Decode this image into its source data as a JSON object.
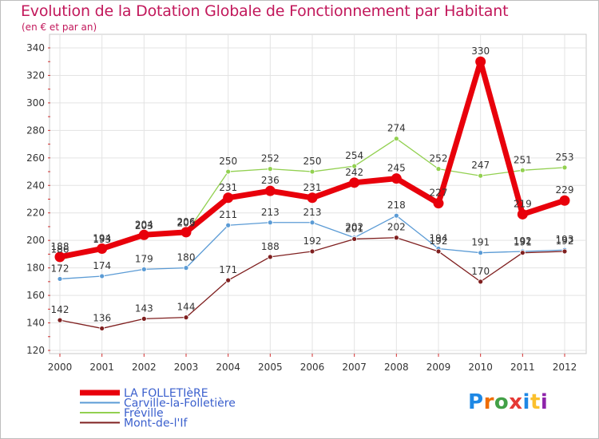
{
  "chart_data": {
    "type": "line",
    "title": "Evolution de la Dotation Globale de Fonctionnement par Habitant",
    "subtitle": "(en € et par an)",
    "xlabel": "",
    "ylabel": "",
    "ylim": [
      120,
      340
    ],
    "yticks": [
      120,
      140,
      160,
      180,
      200,
      220,
      240,
      260,
      280,
      300,
      320,
      340
    ],
    "categories": [
      "2000",
      "2001",
      "2002",
      "2003",
      "2004",
      "2005",
      "2006",
      "2007",
      "2008",
      "2009",
      "2010",
      "2011",
      "2012"
    ],
    "grid": true,
    "legend_position": "bottom-left",
    "series": [
      {
        "name": "LA FOLLETIèRE",
        "color": "#e8000b",
        "emphasis": true,
        "values": [
          188,
          194,
          204,
          206,
          231,
          236,
          231,
          242,
          245,
          227,
          330,
          219,
          229
        ]
      },
      {
        "name": "Carville-la-Folletière",
        "color": "#5b9bd5",
        "values": [
          172,
          174,
          179,
          180,
          211,
          213,
          213,
          202,
          218,
          194,
          191,
          192,
          193
        ]
      },
      {
        "name": "Fréville",
        "color": "#92d050",
        "values": [
          186,
          193,
          203,
          205,
          250,
          252,
          250,
          254,
          274,
          252,
          247,
          251,
          253
        ]
      },
      {
        "name": "Mont-de-l'If",
        "color": "#7f1f1f",
        "values": [
          142,
          136,
          143,
          144,
          171,
          188,
          192,
          201,
          202,
          192,
          170,
          191,
          192
        ]
      }
    ]
  },
  "logo": {
    "letters": [
      "P",
      "r",
      "o",
      "x",
      "i",
      "t",
      "i"
    ]
  }
}
